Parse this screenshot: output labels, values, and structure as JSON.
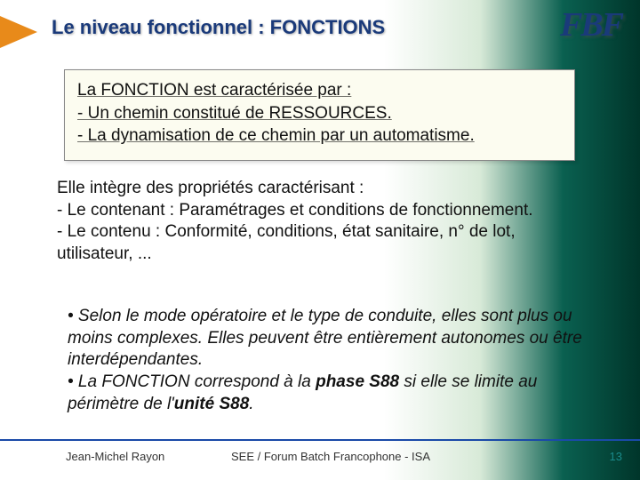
{
  "title": "Le niveau fonctionnel : FONCTIONS",
  "logo": "FBF",
  "box": {
    "l1": "La FONCTION est caractérisée par :",
    "l2": "- Un chemin constitué de RESSOURCES.",
    "l3": "- La dynamisation de ce chemin par un automatisme."
  },
  "body1": {
    "l1": "Elle intègre des propriétés caractérisant :",
    "l2": "- Le contenant : Paramétrages et conditions de fonctionnement.",
    "l3": "- Le contenu : Conformité, conditions, état sanitaire, n° de lot, utilisateur, ..."
  },
  "body2": {
    "b1a": "• Selon le mode opératoire et le type de conduite, elles sont plus ou moins complexes. Elles peuvent être entièrement autonomes ou être interdépendantes.",
    "b2a": "• La FONCTION correspond à la ",
    "b2phase": "phase S88",
    "b2b": " si elle se limite au périmètre de l'",
    "b2unite": "unité S88",
    "b2c": "."
  },
  "footer": {
    "author": "Jean-Michel Rayon",
    "center": "SEE / Forum Batch Francophone - ISA",
    "num": "13"
  },
  "colors": {
    "title_color": "#1a3a7a",
    "accent_orange": "#e88a1a",
    "footer_line": "#1a4aa8",
    "page_num": "#1a8a8a"
  }
}
